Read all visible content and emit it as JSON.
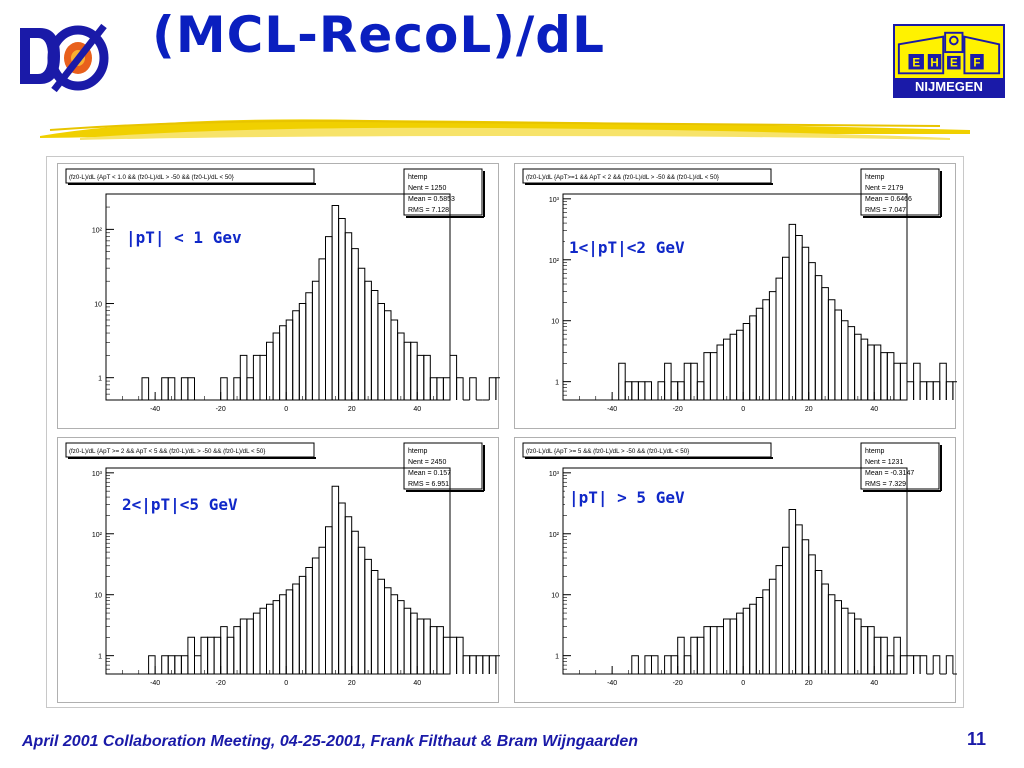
{
  "slide": {
    "title": "(MCL-RecoL)/dL",
    "footer": "April 2001 Collaboration Meeting, 04-25-2001, Frank Filthaut & Bram Wijngaarden",
    "page_number": "11",
    "logos": {
      "left": "D0 experiment logo",
      "right_letters": [
        "E",
        "H",
        "E",
        "F"
      ],
      "right_text": "NIJMEGEN"
    },
    "colors": {
      "title": "#0a1fbf",
      "label": "#1028c8",
      "footer": "#1a1aa8",
      "logo_yellow": "#fff200",
      "swoosh": "#f0d000"
    }
  },
  "chart_data": [
    {
      "type": "bar",
      "title": "(fz0-L)/dL {ApT < 1.0 && (fz0-L)/dL > -50 && (fz0-L)/dL < 50}",
      "label": "|pT| < 1 Gev",
      "stats": {
        "name": "htemp",
        "entries": "Nent = 1250",
        "mean": "Mean = 0.5853",
        "rms": "RMS = 7.128"
      },
      "yscale": "log",
      "ylim": [
        0.5,
        300
      ],
      "xlim": [
        -55,
        50
      ],
      "yticks": [
        {
          "v": 1,
          "t": "1"
        },
        {
          "v": 10,
          "t": "10"
        },
        {
          "v": 100,
          "t": "10²"
        }
      ],
      "xticks": [
        -40,
        -20,
        0,
        20,
        40
      ],
      "x_start": -50,
      "bin_width": 2,
      "values": [
        0,
        0,
        0,
        1,
        0,
        0,
        1,
        1,
        0,
        1,
        1,
        0,
        0,
        0,
        0,
        1,
        0,
        1,
        2,
        1,
        2,
        2,
        3,
        4,
        5,
        6,
        8,
        10,
        14,
        20,
        40,
        80,
        210,
        140,
        90,
        55,
        30,
        20,
        15,
        10,
        8,
        6,
        4,
        3,
        3,
        2,
        2,
        1,
        1,
        1,
        2,
        1,
        0,
        1,
        0,
        0,
        1,
        1,
        1,
        0,
        1,
        1,
        0,
        0,
        1,
        0,
        0,
        0,
        0,
        0,
        0,
        0,
        0,
        0,
        0,
        0,
        0,
        0,
        1,
        0
      ]
    },
    {
      "type": "bar",
      "title": "(fz0-L)/dL {ApT>=1 && ApT < 2 && (fz0-L)/dL > -50 && (fz0-L)/dL < 50}",
      "label": "1<|pT|<2 GeV",
      "stats": {
        "name": "htemp",
        "entries": "Nent = 2179",
        "mean": "Mean = 0.6466",
        "rms": "RMS = 7.047"
      },
      "yscale": "log",
      "ylim": [
        0.5,
        1200
      ],
      "xlim": [
        -55,
        50
      ],
      "yticks": [
        {
          "v": 1,
          "t": "1"
        },
        {
          "v": 10,
          "t": "10"
        },
        {
          "v": 100,
          "t": "10²"
        },
        {
          "v": 1000,
          "t": "10³"
        }
      ],
      "xticks": [
        -40,
        -20,
        0,
        20,
        40
      ],
      "x_start": -50,
      "bin_width": 2,
      "values": [
        0,
        0,
        0,
        0,
        0,
        0,
        2,
        1,
        1,
        1,
        1,
        0,
        1,
        2,
        1,
        1,
        2,
        2,
        1,
        3,
        3,
        4,
        5,
        6,
        7,
        9,
        12,
        16,
        22,
        30,
        50,
        110,
        380,
        250,
        160,
        90,
        55,
        35,
        22,
        15,
        10,
        8,
        6,
        5,
        4,
        4,
        3,
        3,
        2,
        2,
        1,
        2,
        1,
        1,
        1,
        2,
        1,
        1,
        0,
        1,
        1,
        0,
        1,
        0,
        0,
        1,
        0,
        0,
        0,
        0,
        0,
        0,
        0,
        0,
        0,
        0,
        0,
        0,
        0,
        0
      ]
    },
    {
      "type": "bar",
      "title": "(fz0-L)/dL {ApT >= 2 && ApT < 5 && (fz0-L)/dL > -50 && (fz0-L)/dL < 50}",
      "label": "2<|pT|<5 GeV",
      "stats": {
        "name": "htemp",
        "entries": "Nent = 2450",
        "mean": "Mean = 0.157",
        "rms": "RMS = 6.951"
      },
      "yscale": "log",
      "ylim": [
        0.5,
        1200
      ],
      "xlim": [
        -55,
        50
      ],
      "yticks": [
        {
          "v": 1,
          "t": "1"
        },
        {
          "v": 10,
          "t": "10"
        },
        {
          "v": 100,
          "t": "10²"
        },
        {
          "v": 1000,
          "t": "10³"
        }
      ],
      "xticks": [
        -40,
        -20,
        0,
        20,
        40
      ],
      "x_start": -50,
      "bin_width": 2,
      "values": [
        0,
        0,
        0,
        0,
        1,
        0,
        1,
        1,
        1,
        1,
        2,
        1,
        2,
        2,
        2,
        3,
        2,
        3,
        4,
        4,
        5,
        6,
        7,
        8,
        10,
        12,
        15,
        20,
        28,
        40,
        60,
        130,
        600,
        320,
        190,
        110,
        60,
        38,
        25,
        18,
        13,
        10,
        8,
        6,
        5,
        4,
        4,
        3,
        3,
        2,
        2,
        2,
        1,
        1,
        1,
        1,
        1,
        1,
        0,
        1,
        0,
        0,
        1,
        0,
        0,
        0,
        0,
        0,
        0,
        0,
        0,
        0,
        0,
        0,
        0,
        0,
        0,
        0,
        0,
        0
      ]
    },
    {
      "type": "bar",
      "title": "(fz0-L)/dL {ApT >= 5 && (fz0-L)/dL > -50 && (fz0-L)/dL < 50}",
      "label": "|pT| > 5 GeV",
      "stats": {
        "name": "htemp",
        "entries": "Nent = 1231",
        "mean": "Mean = -0.3147",
        "rms": "RMS = 7.329"
      },
      "yscale": "log",
      "ylim": [
        0.5,
        1200
      ],
      "xlim": [
        -55,
        50
      ],
      "yticks": [
        {
          "v": 1,
          "t": "1"
        },
        {
          "v": 10,
          "t": "10"
        },
        {
          "v": 100,
          "t": "10²"
        },
        {
          "v": 1000,
          "t": "10³"
        }
      ],
      "xticks": [
        -40,
        -20,
        0,
        20,
        40
      ],
      "x_start": -50,
      "bin_width": 2,
      "values": [
        0,
        0,
        0,
        0,
        0,
        0,
        0,
        0,
        1,
        0,
        1,
        1,
        0,
        1,
        1,
        2,
        1,
        2,
        2,
        3,
        3,
        3,
        4,
        4,
        5,
        6,
        7,
        9,
        12,
        18,
        30,
        60,
        250,
        140,
        80,
        45,
        25,
        15,
        10,
        8,
        6,
        5,
        4,
        3,
        3,
        2,
        2,
        1,
        2,
        1,
        1,
        1,
        1,
        0,
        1,
        0,
        1,
        0,
        0,
        0,
        0,
        0,
        0,
        0,
        0,
        0,
        0,
        0,
        0,
        0,
        0,
        0,
        0,
        0,
        0,
        0,
        0,
        0,
        0,
        0
      ]
    }
  ]
}
